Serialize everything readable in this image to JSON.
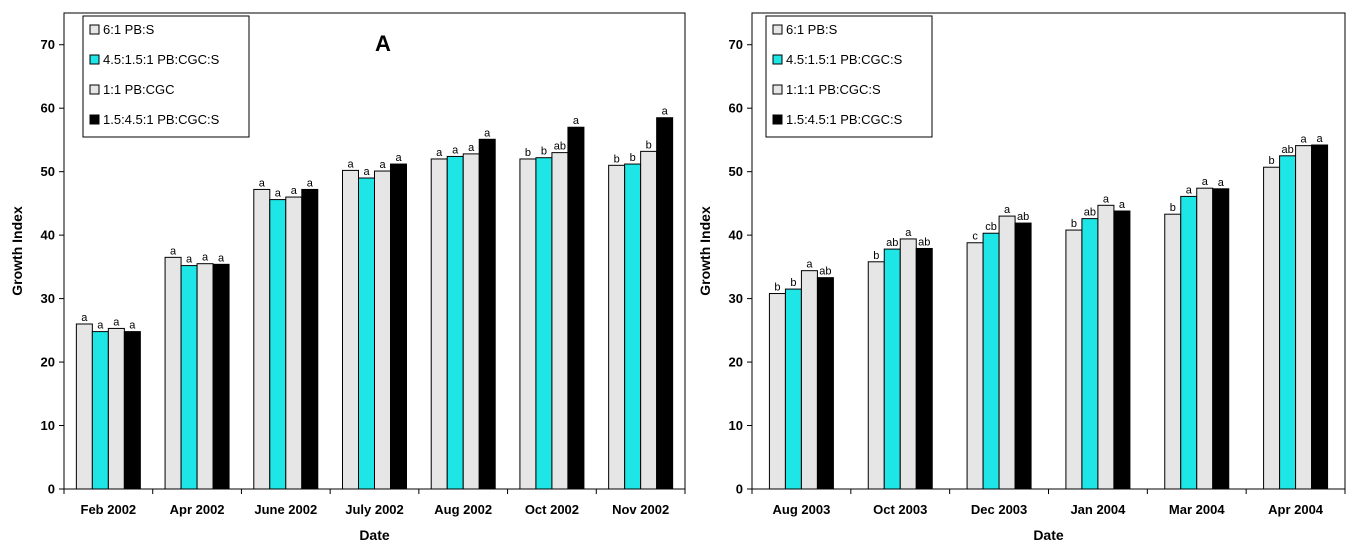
{
  "chart_data": [
    {
      "type": "bar",
      "panel_label": "A",
      "xlabel": "Date",
      "ylabel": "Growth Index",
      "ylim": [
        0,
        75
      ],
      "yticks": [
        0,
        10,
        20,
        30,
        40,
        50,
        60,
        70
      ],
      "grid": false,
      "legend_position": "top-left",
      "categories": [
        "Feb 2002",
        "Apr 2002",
        "June 2002",
        "July 2002",
        "Aug 2002",
        "Oct 2002",
        "Nov 2002"
      ],
      "series": [
        {
          "name": "6:1 PB:S",
          "color": "#e6e6e6",
          "values": [
            26,
            36.5,
            47.2,
            50.2,
            52,
            52,
            51
          ],
          "labels": [
            "a",
            "a",
            "a",
            "a",
            "a",
            "b",
            "b"
          ]
        },
        {
          "name": "4.5:1.5:1 PB:CGC:S",
          "color": "#1ee6e6",
          "values": [
            24.8,
            35.2,
            45.6,
            49,
            52.4,
            52.2,
            51.2
          ],
          "labels": [
            "a",
            "a",
            "a",
            "a",
            "a",
            "b",
            "b"
          ]
        },
        {
          "name": "1:1 PB:CGC",
          "color": "#e6e6e6",
          "values": [
            25.3,
            35.5,
            46,
            50.1,
            52.8,
            53,
            53.2
          ],
          "labels": [
            "a",
            "a",
            "a",
            "a",
            "a",
            "ab",
            "b"
          ]
        },
        {
          "name": "1.5:4.5:1 PB:CGC:S",
          "color": "#000000",
          "values": [
            24.8,
            35.4,
            47.2,
            51.2,
            55.1,
            57,
            58.5
          ],
          "labels": [
            "a",
            "a",
            "a",
            "a",
            "a",
            "a",
            "a"
          ]
        }
      ]
    },
    {
      "type": "bar",
      "xlabel": "Date",
      "ylabel": "Growth Index",
      "ylim": [
        0,
        75
      ],
      "yticks": [
        0,
        10,
        20,
        30,
        40,
        50,
        60,
        70
      ],
      "grid": false,
      "legend_position": "top-left",
      "categories": [
        "Aug 2003",
        "Oct 2003",
        "Dec 2003",
        "Jan 2004",
        "Mar 2004",
        "Apr 2004"
      ],
      "series": [
        {
          "name": "6:1 PB:S",
          "color": "#e6e6e6",
          "values": [
            30.8,
            35.8,
            38.8,
            40.8,
            43.3,
            50.7
          ],
          "labels": [
            "b",
            "b",
            "c",
            "b",
            "b",
            "b"
          ]
        },
        {
          "name": "4.5:1.5:1 PB:CGC:S",
          "color": "#1ee6e6",
          "values": [
            31.5,
            37.8,
            40.3,
            42.6,
            46.1,
            52.5
          ],
          "labels": [
            "b",
            "ab",
            "cb",
            "ab",
            "a",
            "ab"
          ]
        },
        {
          "name": "1:1:1 PB:CGC:S",
          "color": "#e6e6e6",
          "values": [
            34.4,
            39.4,
            43,
            44.7,
            47.4,
            54.1
          ],
          "labels": [
            "a",
            "a",
            "a",
            "a",
            "a",
            "a"
          ]
        },
        {
          "name": "1.5:4.5:1 PB:CGC:S",
          "color": "#000000",
          "values": [
            33.3,
            37.9,
            41.9,
            43.8,
            47.3,
            54.2
          ],
          "labels": [
            "ab",
            "ab",
            "ab",
            "a",
            "a",
            "a"
          ]
        }
      ]
    }
  ]
}
